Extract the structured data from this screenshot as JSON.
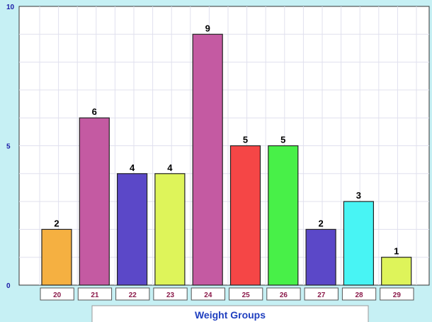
{
  "chart_data": {
    "type": "bar",
    "categories": [
      "20",
      "21",
      "22",
      "23",
      "24",
      "25",
      "26",
      "27",
      "28",
      "29"
    ],
    "values": [
      2,
      6,
      4,
      4,
      9,
      5,
      5,
      2,
      3,
      1
    ],
    "bar_colors": [
      "#f5b041",
      "#c45aa2",
      "#5b48c8",
      "#def45a",
      "#c45aa2",
      "#f54646",
      "#48f048",
      "#5b48c8",
      "#48f4f4",
      "#def45a"
    ],
    "xlabel": "Weight Groups",
    "ylabel": "",
    "ylim": [
      0,
      10
    ],
    "yticks": [
      "0",
      "5",
      "10"
    ],
    "grid": true,
    "legend": "none"
  }
}
